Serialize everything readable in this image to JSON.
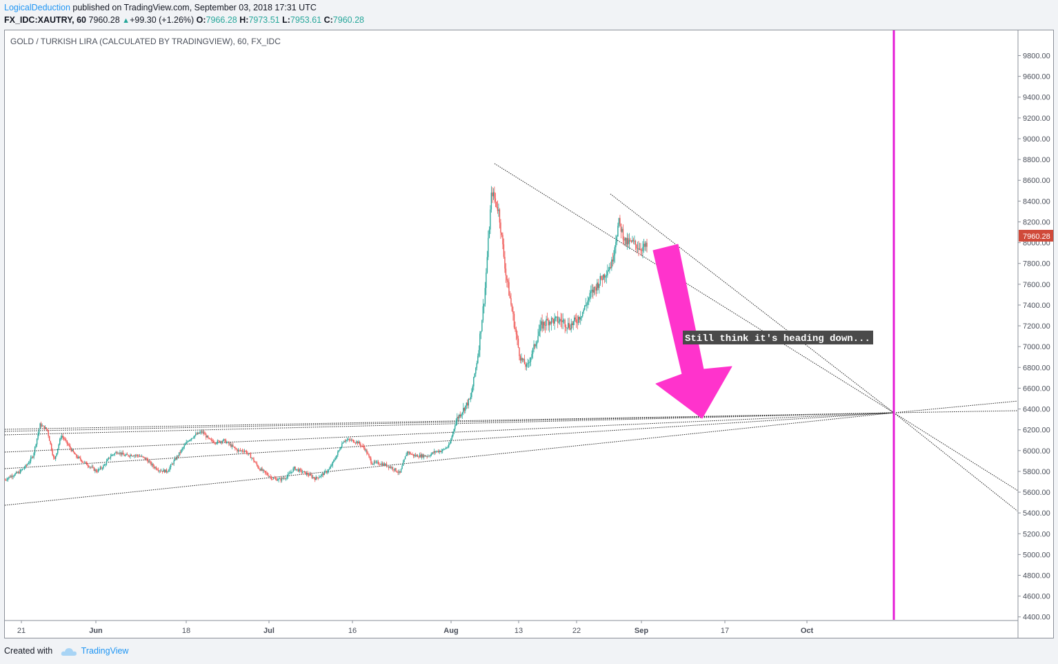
{
  "header": {
    "author": "LogicalDeduction",
    "published_text": "published on TradingView.com, September 03, 2018 17:31 UTC",
    "symbol": "FX_IDC:XAUTRY, 60",
    "last_price": "7960.28",
    "change": "+99.30 (+1.26%)",
    "open_label": "O:",
    "open": "7966.28",
    "high_label": "H:",
    "high": "7973.51",
    "low_label": "L:",
    "low": "7953.61",
    "close_label": "C:",
    "close": "7960.28"
  },
  "footer": {
    "created_with": "Created with",
    "brand": "TradingView"
  },
  "colors": {
    "up": "#26a69a",
    "down": "#ef5350",
    "magenta": "#ff33cc",
    "price_tag": "#d04a3a",
    "vline": "#e41bd6"
  },
  "chart_data": {
    "type": "candlestick",
    "title": "GOLD / TURKISH LIRA (CALCULATED BY TRADINGVIEW), 60, FX_IDC",
    "ylim": [
      4300,
      9900
    ],
    "y_ticks": [
      "9800.00",
      "9600.00",
      "9400.00",
      "9200.00",
      "9000.00",
      "8800.00",
      "8600.00",
      "8400.00",
      "8200.00",
      "8000.00",
      "7800.00",
      "7600.00",
      "7400.00",
      "7200.00",
      "7000.00",
      "6800.00",
      "6600.00",
      "6400.00",
      "6200.00",
      "6000.00",
      "5800.00",
      "5600.00",
      "5400.00",
      "5200.00",
      "5000.00",
      "4800.00",
      "4600.00",
      "4400.00"
    ],
    "x_ticks": [
      "21",
      "Jun",
      "18",
      "Jul",
      "16",
      "Aug",
      "13",
      "22",
      "Sep",
      "17",
      "Oct"
    ],
    "x_ticks_bold": [
      "Jun",
      "Jul",
      "Aug",
      "Sep",
      "Oct"
    ],
    "last_price_label": "7960.28",
    "annotation": "Still think it's heading down...",
    "close_series": [
      5720,
      5760,
      5790,
      5850,
      5950,
      6250,
      6200,
      5900,
      6150,
      6050,
      5950,
      5900,
      5850,
      5800,
      5850,
      5950,
      5990,
      5950,
      5960,
      5950,
      5920,
      5850,
      5810,
      5800,
      5900,
      6000,
      6100,
      6150,
      6180,
      6100,
      6080,
      6100,
      6050,
      6000,
      6000,
      5930,
      5830,
      5780,
      5730,
      5720,
      5750,
      5830,
      5800,
      5770,
      5730,
      5770,
      5820,
      5950,
      6100,
      6100,
      6080,
      6020,
      5880,
      5880,
      5860,
      5830,
      5780,
      5990,
      5950,
      5950,
      5950,
      5990,
      6000,
      6050,
      6300,
      6400,
      6500,
      6900,
      7500,
      8500,
      8300,
      7700,
      7300,
      6900,
      6800,
      7000,
      7200,
      7250,
      7250,
      7250,
      7200,
      7250,
      7350,
      7500,
      7600,
      7700,
      7800,
      8200,
      8000,
      8000,
      7950,
      7960.28
    ]
  }
}
